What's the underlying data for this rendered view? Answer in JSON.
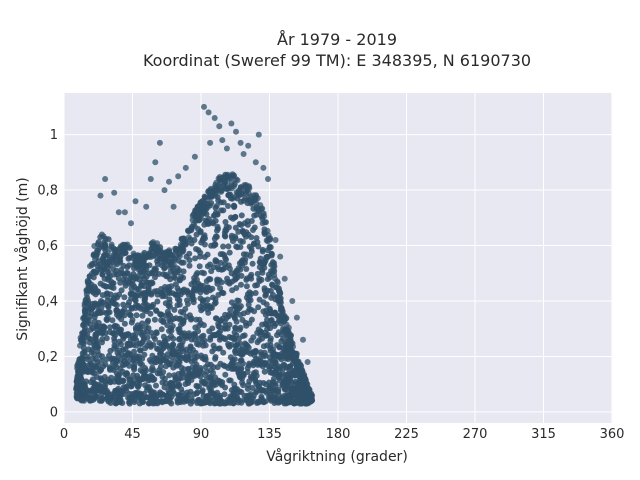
{
  "chart_data": {
    "type": "scatter",
    "title": "År 1979 - 2019",
    "subtitle": "Koordinat (Sweref 99 TM): E 348395, N 6190730",
    "xlabel": "Vågriktning (grader)",
    "ylabel": "Signifikant våghöjd (m)",
    "xlim": [
      0,
      360
    ],
    "ylim": [
      -0.04,
      1.15
    ],
    "grid": true,
    "x_ticks": [
      0,
      45,
      90,
      135,
      180,
      225,
      270,
      315,
      360
    ],
    "x_tick_labels": [
      "0",
      "45",
      "90",
      "135",
      "180",
      "225",
      "270",
      "315",
      "360"
    ],
    "y_ticks": [
      0,
      0.2,
      0.4,
      0.6,
      0.8,
      1
    ],
    "y_tick_labels": [
      "0",
      "0,2",
      "0,4",
      "0,6",
      "0,8",
      "1"
    ],
    "marker_color": "#2f5068",
    "background_color": "#e8e8f2",
    "series": [
      {
        "values_envelope": [
          {
            "x": 8,
            "ymin": 0.05,
            "ymax": 0.14
          },
          {
            "x": 12,
            "ymin": 0.04,
            "ymax": 0.32
          },
          {
            "x": 16,
            "ymin": 0.04,
            "ymax": 0.5
          },
          {
            "x": 20,
            "ymin": 0.04,
            "ymax": 0.6
          },
          {
            "x": 25,
            "ymin": 0.04,
            "ymax": 0.66
          },
          {
            "x": 30,
            "ymin": 0.03,
            "ymax": 0.62
          },
          {
            "x": 35,
            "ymin": 0.03,
            "ymax": 0.58
          },
          {
            "x": 40,
            "ymin": 0.03,
            "ymax": 0.62
          },
          {
            "x": 45,
            "ymin": 0.03,
            "ymax": 0.58
          },
          {
            "x": 50,
            "ymin": 0.03,
            "ymax": 0.56
          },
          {
            "x": 55,
            "ymin": 0.03,
            "ymax": 0.6
          },
          {
            "x": 60,
            "ymin": 0.03,
            "ymax": 0.62
          },
          {
            "x": 65,
            "ymin": 0.03,
            "ymax": 0.6
          },
          {
            "x": 70,
            "ymin": 0.03,
            "ymax": 0.58
          },
          {
            "x": 75,
            "ymin": 0.03,
            "ymax": 0.6
          },
          {
            "x": 80,
            "ymin": 0.03,
            "ymax": 0.66
          },
          {
            "x": 85,
            "ymin": 0.03,
            "ymax": 0.72
          },
          {
            "x": 90,
            "ymin": 0.03,
            "ymax": 0.76
          },
          {
            "x": 95,
            "ymin": 0.03,
            "ymax": 0.8
          },
          {
            "x": 100,
            "ymin": 0.03,
            "ymax": 0.84
          },
          {
            "x": 105,
            "ymin": 0.03,
            "ymax": 0.86
          },
          {
            "x": 110,
            "ymin": 0.03,
            "ymax": 0.86
          },
          {
            "x": 115,
            "ymin": 0.03,
            "ymax": 0.84
          },
          {
            "x": 120,
            "ymin": 0.03,
            "ymax": 0.82
          },
          {
            "x": 125,
            "ymin": 0.03,
            "ymax": 0.8
          },
          {
            "x": 130,
            "ymin": 0.03,
            "ymax": 0.74
          },
          {
            "x": 135,
            "ymin": 0.03,
            "ymax": 0.64
          },
          {
            "x": 140,
            "ymin": 0.03,
            "ymax": 0.48
          },
          {
            "x": 145,
            "ymin": 0.03,
            "ymax": 0.36
          },
          {
            "x": 150,
            "ymin": 0.03,
            "ymax": 0.26
          },
          {
            "x": 155,
            "ymin": 0.03,
            "ymax": 0.18
          },
          {
            "x": 160,
            "ymin": 0.03,
            "ymax": 0.1
          },
          {
            "x": 163,
            "ymin": 0.04,
            "ymax": 0.06
          }
        ],
        "outliers": [
          [
            92,
            1.1
          ],
          [
            95,
            1.08
          ],
          [
            99,
            1.06
          ],
          [
            102,
            1.03
          ],
          [
            110,
            1.04
          ],
          [
            113,
            1.01
          ],
          [
            121,
            0.96
          ],
          [
            128,
            1.0
          ],
          [
            104,
            0.98
          ],
          [
            96,
            0.97
          ],
          [
            63,
            0.97
          ],
          [
            107,
            0.95
          ],
          [
            60,
            0.9
          ],
          [
            80,
            0.88
          ],
          [
            75,
            0.85
          ],
          [
            69,
            0.83
          ],
          [
            57,
            0.84
          ],
          [
            27,
            0.84
          ],
          [
            33,
            0.79
          ],
          [
            24,
            0.78
          ],
          [
            126,
            0.9
          ],
          [
            131,
            0.88
          ],
          [
            86,
            0.92
          ],
          [
            134,
            0.84
          ],
          [
            116,
            0.97
          ],
          [
            118,
            0.93
          ],
          [
            66,
            0.8
          ],
          [
            54,
            0.74
          ],
          [
            40,
            0.72
          ],
          [
            47,
            0.76
          ],
          [
            139,
            0.62
          ],
          [
            142,
            0.56
          ],
          [
            145,
            0.48
          ],
          [
            150,
            0.4
          ],
          [
            153,
            0.34
          ],
          [
            157,
            0.26
          ],
          [
            160,
            0.18
          ],
          [
            44,
            0.68
          ],
          [
            36,
            0.72
          ],
          [
            72,
            0.74
          ]
        ]
      }
    ]
  }
}
